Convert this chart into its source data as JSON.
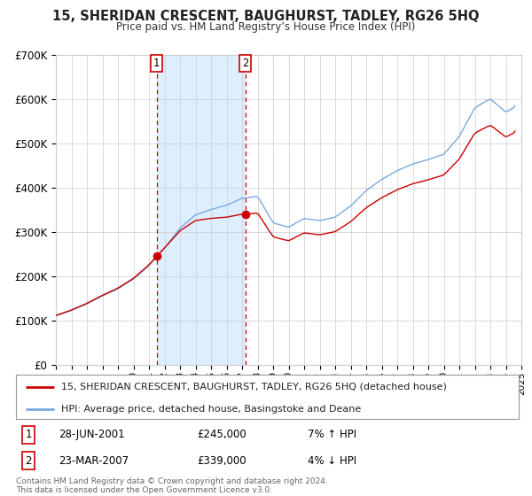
{
  "title": "15, SHERIDAN CRESCENT, BAUGHURST, TADLEY, RG26 5HQ",
  "subtitle": "Price paid vs. HM Land Registry’s House Price Index (HPI)",
  "ylim": [
    0,
    700000
  ],
  "yticks": [
    0,
    100000,
    200000,
    300000,
    400000,
    500000,
    600000,
    700000
  ],
  "ytick_labels": [
    "£0",
    "£100K",
    "£200K",
    "£300K",
    "£400K",
    "£500K",
    "£600K",
    "£700K"
  ],
  "legend_line1": "15, SHERIDAN CRESCENT, BAUGHURST, TADLEY, RG26 5HQ (detached house)",
  "legend_line2": "HPI: Average price, detached house, Basingstoke and Deane",
  "sale1_date": "28-JUN-2001",
  "sale1_price": "£245,000",
  "sale1_hpi": "7% ↑ HPI",
  "sale2_date": "23-MAR-2007",
  "sale2_price": "£339,000",
  "sale2_hpi": "4% ↓ HPI",
  "copyright": "Contains HM Land Registry data © Crown copyright and database right 2024.\nThis data is licensed under the Open Government Licence v3.0.",
  "sale1_x": 2001.49,
  "sale1_y": 245000,
  "sale2_x": 2007.22,
  "sale2_y": 339000,
  "sale_color": "#cc0000",
  "hpi_color": "#7aaadd",
  "shade_color": "#ddeeff",
  "background_color": "#ffffff",
  "plot_bg": "#ffffff",
  "grid_color": "#cccccc",
  "xlim_start": 1995,
  "xlim_end": 2025
}
